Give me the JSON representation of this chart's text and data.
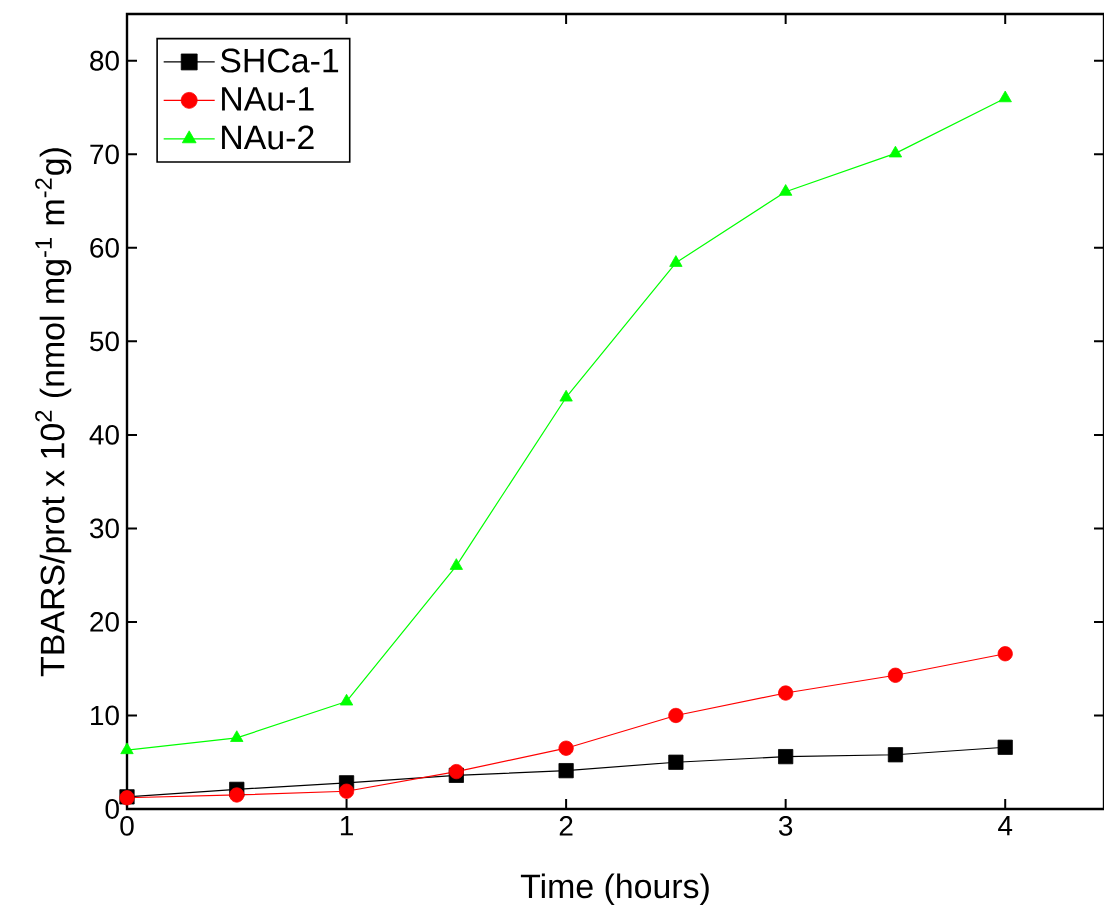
{
  "chart_data": {
    "type": "line",
    "xlabel": "Time (hours)",
    "ylabel": "TBARS/prot x 10$^{2}$ (nmol mg$^{-1}$ m$^{-2}$g)",
    "x": [
      0,
      0.5,
      1,
      1.5,
      2,
      2.5,
      3,
      3.5,
      4
    ],
    "series": [
      {
        "name": "SHCa-1",
        "color": "#000000",
        "marker": "square",
        "values": [
          1.3,
          2.1,
          2.8,
          3.6,
          4.1,
          5.0,
          5.6,
          5.8,
          6.6
        ]
      },
      {
        "name": "NAu-1",
        "color": "#ff0000",
        "marker": "circle",
        "values": [
          1.2,
          1.5,
          1.9,
          4.0,
          6.5,
          10.0,
          12.4,
          14.3,
          16.6
        ]
      },
      {
        "name": "NAu-2",
        "color": "#00ff00",
        "marker": "triangle",
        "values": [
          6.3,
          7.6,
          11.5,
          26.0,
          44.0,
          58.4,
          66.0,
          70.1,
          76.0
        ]
      }
    ],
    "xlim": [
      0,
      4.45
    ],
    "ylim": [
      0,
      85
    ],
    "xticks": [
      0,
      1,
      2,
      3,
      4
    ],
    "yticks": [
      0,
      10,
      20,
      30,
      40,
      50,
      60,
      70,
      80
    ],
    "grid": false,
    "legend": "top left",
    "line_style": "solid"
  }
}
